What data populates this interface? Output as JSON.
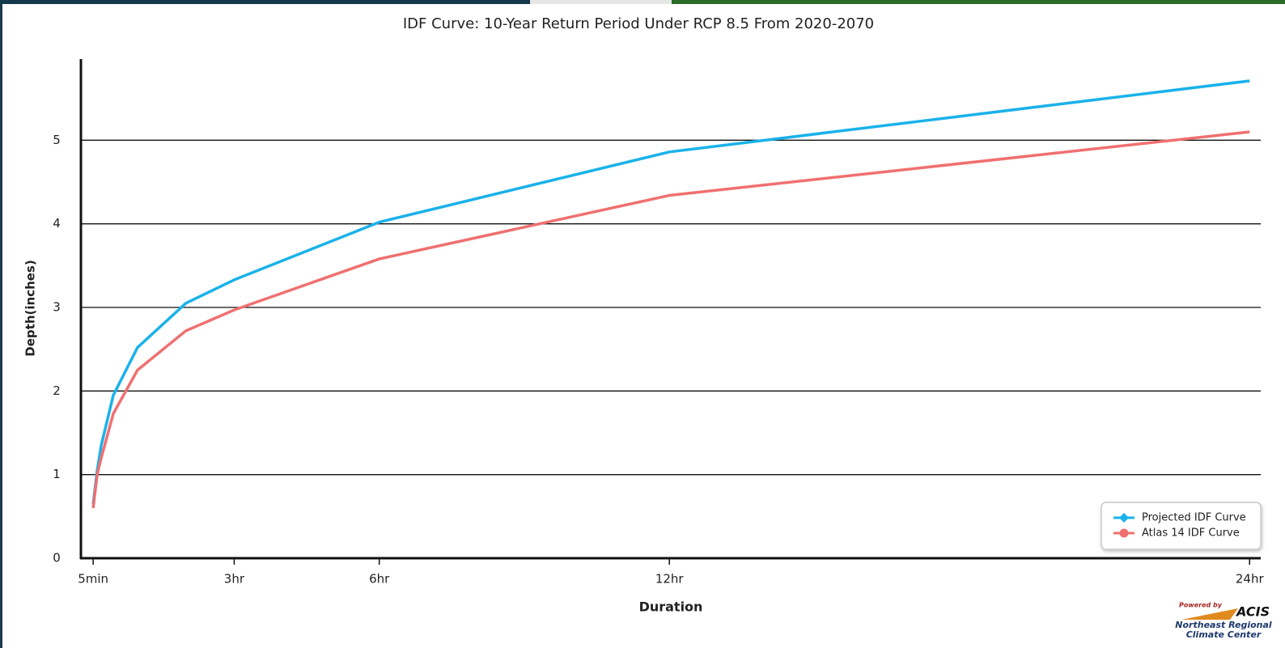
{
  "chart_data": {
    "type": "line",
    "title": "IDF Curve: 10-Year Return Period Under RCP 8.5 From 2020-2070",
    "x_label": "Duration",
    "y_label": "Depth(inches)",
    "x": [
      0.0833,
      0.1667,
      0.25,
      0.5,
      1,
      2,
      3,
      6,
      12,
      24
    ],
    "series": [
      {
        "name": "Projected IDF Curve",
        "color": "#1ab2ea",
        "marker": "diamond",
        "values": [
          0.65,
          1.05,
          1.35,
          1.95,
          2.52,
          3.05,
          3.33,
          4.02,
          4.86,
          5.71
        ]
      },
      {
        "name": "Atlas 14 IDF Curve",
        "color": "#f07070",
        "marker": "circle",
        "values": [
          0.6,
          1.0,
          1.2,
          1.73,
          2.25,
          2.72,
          2.97,
          3.58,
          4.34,
          5.1
        ]
      }
    ],
    "xlim": [
      -0.17,
      24.23
    ],
    "ylim": [
      0,
      6
    ],
    "xticks": [
      {
        "value": 0.0833,
        "label": "5min"
      },
      {
        "value": 3,
        "label": "3hr"
      },
      {
        "value": 6,
        "label": "6hr"
      },
      {
        "value": 12,
        "label": "12hr"
      },
      {
        "value": 24,
        "label": "24hr"
      }
    ],
    "yticks": [
      0,
      1,
      2,
      3,
      4,
      5
    ],
    "grid": true,
    "legend": "bottom-right",
    "logo": {
      "powered": "Powered by",
      "brand": "ACIS",
      "org_line1": "Northeast Regional",
      "org_line2": "Climate Center"
    }
  }
}
